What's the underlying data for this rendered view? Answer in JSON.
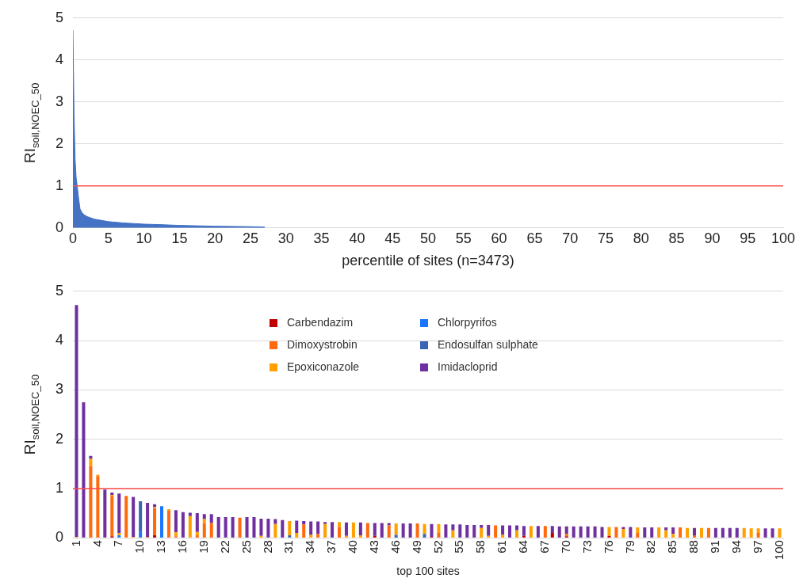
{
  "chart_data": [
    {
      "type": "area",
      "ylabel": "RI$_{soil,NOEC_50}$",
      "xlabel": "percentile of sites (n=3473)",
      "color": "#4472c4",
      "x": [
        0,
        0.15,
        0.3,
        0.45,
        0.6,
        0.8,
        1,
        1.3,
        1.6,
        2,
        3,
        4,
        5,
        7,
        10,
        12,
        15,
        20,
        25,
        27
      ],
      "values": [
        4.72,
        2.75,
        1.66,
        1.2,
        1.0,
        0.7,
        0.45,
        0.36,
        0.31,
        0.27,
        0.21,
        0.18,
        0.15,
        0.12,
        0.09,
        0.08,
        0.06,
        0.04,
        0.03,
        0.02
      ],
      "xlim": [
        0,
        100
      ],
      "xticks": [
        0,
        5,
        10,
        15,
        20,
        25,
        30,
        35,
        40,
        45,
        50,
        55,
        60,
        65,
        70,
        75,
        80,
        85,
        90,
        95,
        100
      ],
      "ylim": [
        0,
        5
      ],
      "yticks": [
        0,
        1,
        2,
        3,
        4,
        5
      ],
      "grid": "y",
      "ref_lines": [
        {
          "axis": "y",
          "value": 1,
          "color": "#ff4d4d"
        }
      ]
    },
    {
      "type": "bar",
      "stacked": true,
      "ylabel": "RI$_{soil,NOEC_50}$",
      "xlabel": "top 100 sites",
      "legend": "top",
      "categories": [
        "1",
        null,
        null,
        "4",
        null,
        null,
        "7",
        null,
        null,
        "10",
        null,
        null,
        "13",
        null,
        null,
        "16",
        null,
        null,
        "19",
        null,
        null,
        "22",
        null,
        null,
        "25",
        null,
        null,
        "28",
        null,
        null,
        "31",
        null,
        null,
        "34",
        null,
        null,
        "37",
        null,
        null,
        "40",
        null,
        null,
        "43",
        null,
        null,
        "46",
        null,
        null,
        "49",
        null,
        null,
        "52",
        null,
        null,
        "55",
        null,
        null,
        "58",
        null,
        null,
        "61",
        null,
        null,
        "64",
        null,
        null,
        "67",
        null,
        null,
        "70",
        null,
        null,
        "73",
        null,
        null,
        "76",
        null,
        null,
        "79",
        null,
        null,
        "82",
        null,
        null,
        "85",
        null,
        null,
        "88",
        null,
        null,
        "91",
        null,
        null,
        "94",
        null,
        null,
        "97",
        null,
        null,
        "100"
      ],
      "series": [
        {
          "name": "Carbendazim",
          "color": "#c00000",
          "values": [
            0,
            0,
            0,
            0,
            0,
            0.03,
            0,
            0,
            0,
            0,
            0,
            0.05,
            0,
            0,
            0,
            0,
            0,
            0,
            0,
            0,
            0,
            0,
            0,
            0,
            0,
            0,
            0,
            0,
            0,
            0,
            0,
            0,
            0,
            0,
            0,
            0,
            0,
            0,
            0,
            0,
            0,
            0,
            0.04,
            0,
            0,
            0,
            0,
            0,
            0,
            0,
            0.02,
            0,
            0,
            0,
            0,
            0,
            0,
            0,
            0,
            0,
            0,
            0,
            0,
            0.04,
            0,
            0,
            0,
            0.1,
            0,
            0.03,
            0,
            0,
            0,
            0,
            0,
            0.04,
            0,
            0,
            0,
            0,
            0,
            0,
            0,
            0,
            0,
            0,
            0,
            0,
            0,
            0,
            0,
            0,
            0,
            0,
            0,
            0,
            0,
            0,
            0,
            0
          ]
        },
        {
          "name": "Chlorpyrifos",
          "color": "#1a75ff",
          "values": [
            0,
            0,
            0,
            0,
            0,
            0,
            0.05,
            0,
            0,
            0.12,
            0,
            0,
            0.64,
            0,
            0,
            0,
            0,
            0,
            0,
            0,
            0,
            0,
            0,
            0,
            0,
            0,
            0,
            0,
            0,
            0,
            0,
            0,
            0,
            0,
            0,
            0,
            0,
            0,
            0,
            0,
            0,
            0,
            0,
            0,
            0,
            0,
            0,
            0,
            0,
            0,
            0,
            0,
            0,
            0,
            0,
            0,
            0,
            0,
            0,
            0,
            0,
            0,
            0,
            0,
            0,
            0,
            0,
            0,
            0,
            0,
            0,
            0,
            0,
            0,
            0,
            0,
            0,
            0,
            0,
            0,
            0,
            0,
            0,
            0,
            0,
            0,
            0,
            0,
            0,
            0,
            0,
            0,
            0,
            0,
            0,
            0,
            0,
            0,
            0,
            0
          ]
        },
        {
          "name": "Dimoxystrobin",
          "color": "#ff6a0e",
          "values": [
            0,
            0,
            1.45,
            1.25,
            0,
            0.82,
            0,
            0.85,
            0,
            0,
            0.02,
            0.55,
            0,
            0.55,
            0.03,
            0,
            0,
            0.05,
            0.3,
            0.3,
            0,
            0,
            0,
            0.41,
            0,
            0,
            0,
            0,
            0,
            0,
            0,
            0,
            0.27,
            0,
            0.08,
            0,
            0,
            0.22,
            0,
            0,
            0,
            0.3,
            0,
            0,
            0.25,
            0,
            0,
            0,
            0.29,
            0,
            0,
            0.1,
            0,
            0,
            0,
            0,
            0,
            0,
            0,
            0.25,
            0,
            0,
            0,
            0,
            0,
            0,
            0.24,
            0,
            0,
            0.05,
            0,
            0,
            0,
            0,
            0,
            0,
            0.22,
            0,
            0,
            0.1,
            0,
            0,
            0,
            0,
            0,
            0.21,
            0,
            0.05,
            0,
            0.2,
            0,
            0,
            0,
            0,
            0,
            0,
            0.1,
            0,
            0,
            0
          ]
        },
        {
          "name": "Endosulfan sulphate",
          "color": "#3a64b4",
          "values": [
            0,
            0,
            0,
            0,
            0,
            0,
            0,
            0,
            0,
            0.62,
            0,
            0,
            0,
            0,
            0,
            0,
            0,
            0,
            0,
            0,
            0,
            0,
            0,
            0,
            0,
            0,
            0,
            0,
            0,
            0,
            0.05,
            0,
            0,
            0,
            0,
            0,
            0,
            0,
            0,
            0,
            0,
            0,
            0,
            0,
            0,
            0.06,
            0,
            0,
            0,
            0.08,
            0,
            0,
            0,
            0,
            0,
            0,
            0,
            0,
            0,
            0,
            0,
            0,
            0,
            0,
            0,
            0,
            0,
            0,
            0,
            0,
            0,
            0,
            0,
            0,
            0,
            0,
            0,
            0,
            0,
            0,
            0,
            0,
            0,
            0,
            0,
            0,
            0,
            0,
            0,
            0,
            0,
            0,
            0,
            0,
            0,
            0,
            0,
            0,
            0,
            0
          ]
        },
        {
          "name": "Epoxiconazole",
          "color": "#ffa000",
          "values": [
            0.02,
            0,
            0.15,
            0.03,
            0,
            0.02,
            0.05,
            0,
            0.02,
            0,
            0,
            0.02,
            0,
            0.03,
            0.08,
            0,
            0.44,
            0.07,
            0.08,
            0,
            0,
            0,
            0,
            0,
            0,
            0,
            0.04,
            0,
            0.28,
            0,
            0.29,
            0.1,
            0,
            0.06,
            0,
            0.28,
            0,
            0.1,
            0.04,
            0.31,
            0.05,
            0,
            0,
            0,
            0,
            0.23,
            0,
            0,
            0,
            0.2,
            0,
            0.18,
            0,
            0.15,
            0,
            0,
            0,
            0.2,
            0.04,
            0,
            0.06,
            0,
            0.15,
            0,
            0.24,
            0,
            0,
            0,
            0,
            0,
            0,
            0,
            0,
            0,
            0,
            0.18,
            0,
            0.18,
            0,
            0.11,
            0,
            0,
            0.21,
            0.15,
            0.08,
            0,
            0.2,
            0,
            0.2,
            0,
            0,
            0,
            0,
            0,
            0.2,
            0.19,
            0.09,
            0,
            0,
            0.19
          ]
        },
        {
          "name": "Imidacloprid",
          "color": "#7030a0",
          "values": [
            4.7,
            2.75,
            0.06,
            0,
            0.98,
            0.05,
            0.8,
            0,
            0.81,
            0,
            0.69,
            0.06,
            0,
            0,
            0.45,
            0.52,
            0.07,
            0.38,
            0.1,
            0.18,
            0.42,
            0.42,
            0.42,
            0,
            0.42,
            0.42,
            0.35,
            0.39,
            0.1,
            0.36,
            0,
            0.25,
            0.07,
            0.27,
            0.25,
            0.04,
            0.32,
            0,
            0.27,
            0,
            0.26,
            0,
            0.26,
            0.3,
            0.05,
            0,
            0.29,
            0.29,
            0,
            0,
            0.26,
            0,
            0.27,
            0.12,
            0.27,
            0.26,
            0.26,
            0.06,
            0.22,
            0,
            0.19,
            0.25,
            0.1,
            0.2,
            0,
            0.24,
            0,
            0.14,
            0.23,
            0.15,
            0.23,
            0.23,
            0.23,
            0.23,
            0.22,
            0,
            0,
            0.04,
            0.22,
            0,
            0.21,
            0.21,
            0,
            0.06,
            0.13,
            0,
            0,
            0.15,
            0,
            0,
            0.2,
            0.2,
            0.2,
            0.2,
            0,
            0,
            0,
            0.19,
            0.19,
            0
          ]
        }
      ],
      "ylim": [
        0,
        5
      ],
      "yticks": [
        0,
        1,
        2,
        3,
        4,
        5
      ],
      "grid": "y",
      "ref_lines": [
        {
          "axis": "y",
          "value": 1,
          "color": "#ff4d4d"
        }
      ]
    }
  ]
}
